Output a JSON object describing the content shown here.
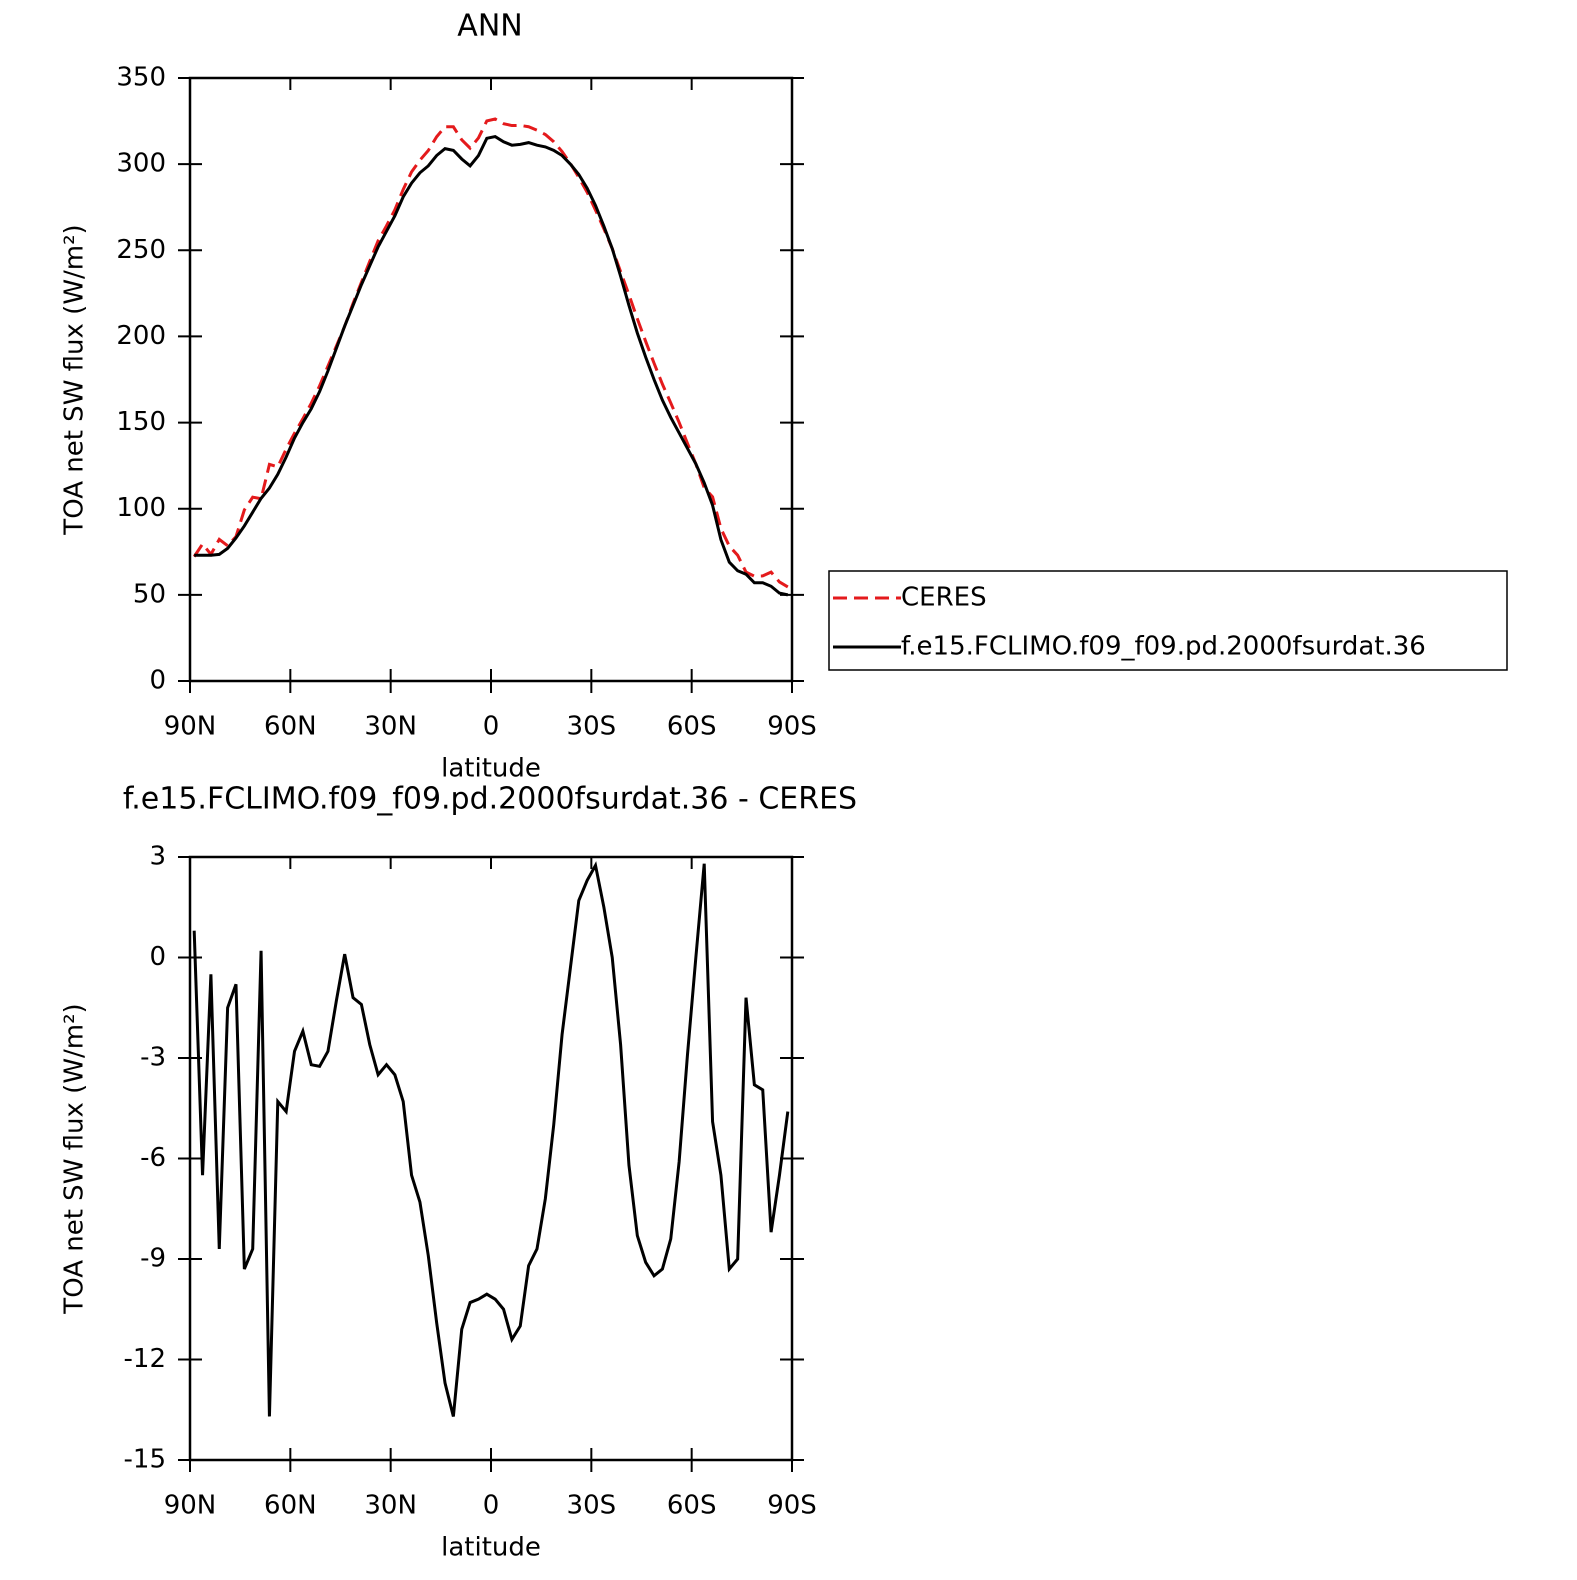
{
  "chart_data": [
    {
      "type": "line",
      "title": "ANN",
      "xlabel": "latitude",
      "ylabel": "TOA net SW flux (W/m²)",
      "xlim": [
        90,
        -90
      ],
      "xticks": [
        {
          "value": 90,
          "label": "90N"
        },
        {
          "value": 60,
          "label": "60N"
        },
        {
          "value": 30,
          "label": "30N"
        },
        0,
        {
          "value": -30,
          "label": "30S"
        },
        {
          "value": -60,
          "label": "60S"
        },
        {
          "value": -90,
          "label": "90S"
        }
      ],
      "ylim": [
        0,
        350
      ],
      "yticks": [
        0,
        50,
        100,
        150,
        200,
        250,
        300,
        350
      ],
      "legend": "right",
      "x": [
        88.75,
        86.25,
        83.75,
        81.25,
        78.75,
        76.25,
        73.75,
        71.25,
        68.75,
        66.25,
        63.75,
        61.25,
        58.75,
        56.25,
        53.75,
        51.25,
        48.75,
        46.25,
        43.75,
        41.25,
        38.75,
        36.25,
        33.75,
        31.25,
        28.75,
        26.25,
        23.75,
        21.25,
        18.75,
        16.25,
        13.75,
        11.25,
        8.75,
        6.25,
        3.75,
        1.25,
        -1.25,
        -3.75,
        -6.25,
        -8.75,
        -11.25,
        -13.75,
        -16.25,
        -18.75,
        -21.25,
        -23.75,
        -26.25,
        -28.75,
        -31.25,
        -33.75,
        -36.25,
        -38.75,
        -41.25,
        -43.75,
        -46.25,
        -48.75,
        -51.25,
        -53.75,
        -56.25,
        -58.75,
        -61.25,
        -63.75,
        -66.25,
        -68.75,
        -71.25,
        -73.75,
        -76.25,
        -78.75,
        -81.25,
        -83.75,
        -86.25,
        -88.75
      ],
      "series": [
        {
          "name": "CERES",
          "color": "#e41a1c",
          "style": "dashed",
          "values": [
            72.2,
            79.5,
            73.5,
            82.2,
            78.5,
            83.8,
            99.3,
            106.7,
            105.8,
            125.7,
            124.3,
            134.6,
            143.8,
            152.2,
            161.2,
            171.3,
            182.8,
            194.3,
            205.9,
            219.2,
            231.4,
            243.6,
            255.5,
            264.2,
            273.5,
            285.3,
            295.5,
            302.3,
            307.9,
            315.9,
            321.7,
            321.7,
            314.1,
            309.3,
            315.2,
            325.1,
            326.2,
            323.5,
            322.4,
            322.5,
            321.7,
            319.7,
            317.2,
            313,
            307.3,
            300.3,
            292.3,
            283.7,
            273.3,
            262.5,
            251,
            237.6,
            224.2,
            210.3,
            197.1,
            184.5,
            172.3,
            161.4,
            150.1,
            137.9,
            126,
            112.2,
            106.9,
            88.5,
            78.3,
            73,
            63.2,
            60.8,
            61,
            63.2,
            57.5,
            54.6
          ]
        },
        {
          "name": "f.e15.FCLIMO.f09_f09.pd.2000fsurdat.36",
          "color": "#000000",
          "style": "solid",
          "values": [
            73,
            73,
            73,
            73.5,
            77,
            83,
            90,
            98,
            106,
            112,
            120,
            130,
            141,
            150,
            158,
            168,
            180,
            193,
            206,
            218,
            230,
            241,
            252,
            261,
            270,
            281,
            289,
            295,
            299,
            305,
            309,
            308,
            303,
            299,
            305,
            315,
            316,
            313,
            311,
            311.5,
            312.5,
            311,
            310,
            308,
            305,
            300,
            294,
            286,
            276,
            264,
            251,
            235,
            218,
            202,
            188,
            175,
            163,
            153,
            144,
            135,
            126,
            115,
            102,
            82,
            69,
            64,
            62,
            57,
            57,
            55,
            51,
            50
          ]
        }
      ]
    },
    {
      "type": "line",
      "title": "f.e15.FCLIMO.f09_f09.pd.2000fsurdat.36 - CERES",
      "xlabel": "latitude",
      "ylabel": "TOA net SW flux (W/m²)",
      "xlim": [
        90,
        -90
      ],
      "xticks": [
        {
          "value": 90,
          "label": "90N"
        },
        {
          "value": 60,
          "label": "60N"
        },
        {
          "value": 30,
          "label": "30N"
        },
        0,
        {
          "value": -30,
          "label": "30S"
        },
        {
          "value": -60,
          "label": "60S"
        },
        {
          "value": -90,
          "label": "90S"
        }
      ],
      "ylim": [
        -15,
        3
      ],
      "yticks": [
        -15,
        -12,
        -9,
        -6,
        -3,
        0,
        3
      ],
      "x": [
        88.75,
        86.25,
        83.75,
        81.25,
        78.75,
        76.25,
        73.75,
        71.25,
        68.75,
        66.25,
        63.75,
        61.25,
        58.75,
        56.25,
        53.75,
        51.25,
        48.75,
        46.25,
        43.75,
        41.25,
        38.75,
        36.25,
        33.75,
        31.25,
        28.75,
        26.25,
        23.75,
        21.25,
        18.75,
        16.25,
        13.75,
        11.25,
        8.75,
        6.25,
        3.75,
        1.25,
        -1.25,
        -3.75,
        -6.25,
        -8.75,
        -11.25,
        -13.75,
        -16.25,
        -18.75,
        -21.25,
        -23.75,
        -26.25,
        -28.75,
        -31.25,
        -33.75,
        -36.25,
        -38.75,
        -41.25,
        -43.75,
        -46.25,
        -48.75,
        -51.25,
        -53.75,
        -56.25,
        -58.75,
        -61.25,
        -63.75,
        -66.25,
        -68.75,
        -71.25,
        -73.75,
        -76.25,
        -78.75,
        -81.25,
        -83.75,
        -86.25,
        -88.75
      ],
      "color": "#000000",
      "values": [
        0.8,
        -6.5,
        -0.5,
        -8.7,
        -1.5,
        -0.8,
        -9.3,
        -8.7,
        0.2,
        -13.7,
        -4.3,
        -4.6,
        -2.8,
        -2.2,
        -3.2,
        -3.25,
        -2.8,
        -1.3,
        0.1,
        -1.2,
        -1.4,
        -2.6,
        -3.5,
        -3.2,
        -3.5,
        -4.3,
        -6.5,
        -7.3,
        -8.9,
        -10.9,
        -12.7,
        -13.7,
        -11.1,
        -10.3,
        -10.2,
        -10.05,
        -10.2,
        -10.5,
        -11.4,
        -11,
        -9.2,
        -8.7,
        -7.2,
        -5,
        -2.3,
        -0.3,
        1.7,
        2.3,
        2.75,
        1.5,
        0,
        -2.6,
        -6.2,
        -8.3,
        -9.1,
        -9.5,
        -9.3,
        -8.4,
        -6.1,
        -2.9,
        0,
        2.8,
        -4.9,
        -6.5,
        -9.3,
        -9,
        -1.2,
        -3.8,
        -3.95,
        -8.2,
        -6.5,
        -4.6
      ]
    }
  ]
}
